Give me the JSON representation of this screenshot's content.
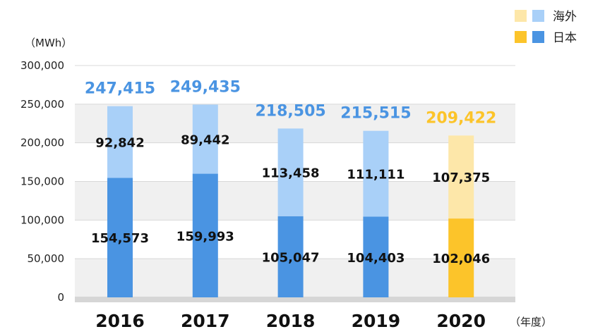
{
  "chart_data": {
    "type": "bar",
    "stacked": true,
    "ylabel": "（MWh）",
    "xunit": "（年度）",
    "ylim": [
      0,
      300000
    ],
    "yticks": [
      "300,000",
      "250,000",
      "200,000",
      "150,000",
      "100,000",
      "50,000",
      "0"
    ],
    "categories": [
      "2016",
      "2017",
      "2018",
      "2019",
      "2020"
    ],
    "series": [
      {
        "name": "日本",
        "values": [
          154573,
          159993,
          105047,
          104403,
          102046
        ],
        "labels": [
          "154,573",
          "159,993",
          "105,047",
          "104,403",
          "102,046"
        ],
        "color": "#4A94E2",
        "highlight_color": "#FCC42A"
      },
      {
        "name": "海外",
        "values": [
          92842,
          89442,
          113458,
          111111,
          107375
        ],
        "labels": [
          "92,842",
          "89,442",
          "113,458",
          "111,111",
          "107,375"
        ],
        "color": "#A9D0F8",
        "highlight_color": "#FDE7A9"
      }
    ],
    "totals": [
      "247,415",
      "249,435",
      "218,505",
      "215,515",
      "209,422"
    ],
    "highlight_category": "2020",
    "total_color": "#4A94E2",
    "total_highlight_color": "#FCC42A",
    "legend": {
      "placement": "top-right",
      "entries": [
        {
          "name": "海外",
          "swatches": [
            "#FDE7A9",
            "#A9D0F8"
          ]
        },
        {
          "name": "日本",
          "swatches": [
            "#FCC42A",
            "#4A94E2"
          ]
        }
      ]
    },
    "grid": true
  }
}
